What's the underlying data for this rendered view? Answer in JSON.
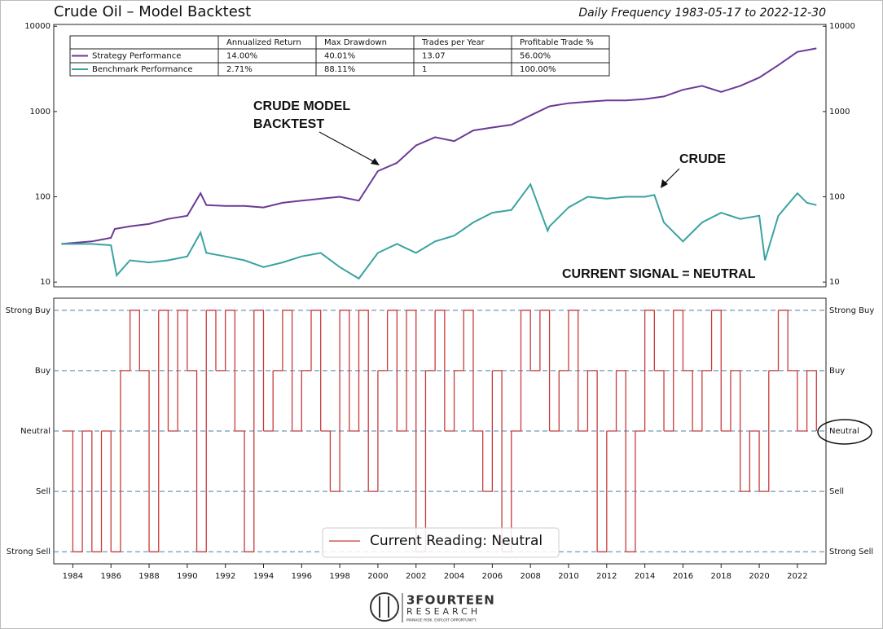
{
  "chart_data": [
    {
      "type": "line",
      "title": "Crude Oil – Model Backtest",
      "subtitle": "Daily Frequency 1983-05-17 to 2022-12-30",
      "log_scale": true,
      "xlim": [
        1983,
        2023.5
      ],
      "ylim": [
        8.8,
        10500
      ],
      "yticks": [
        10,
        100,
        1000,
        10000
      ],
      "series": [
        {
          "name": "Strategy Performance",
          "color": "#6b3a96",
          "x": [
            1983.4,
            1985,
            1986,
            1986.2,
            1987,
            1988,
            1989,
            1990,
            1990.7,
            1991,
            1992,
            1993,
            1994,
            1995,
            1996,
            1997,
            1998,
            1999,
            2000,
            2001,
            2002,
            2003,
            2004,
            2005,
            2006,
            2007,
            2008,
            2009,
            2010,
            2011,
            2012,
            2013,
            2014,
            2015,
            2016,
            2017,
            2018,
            2019,
            2020,
            2021,
            2022,
            2023
          ],
          "values": [
            28,
            30,
            33,
            42,
            45,
            48,
            55,
            60,
            110,
            80,
            78,
            78,
            75,
            85,
            90,
            95,
            100,
            90,
            200,
            250,
            400,
            500,
            450,
            600,
            650,
            700,
            900,
            1150,
            1250,
            1300,
            1350,
            1350,
            1400,
            1500,
            1800,
            2000,
            1700,
            2000,
            2500,
            3500,
            5000,
            5500
          ]
        },
        {
          "name": "Benchmark Performance",
          "color": "#3aa3a0",
          "x": [
            1983.4,
            1985,
            1986,
            1986.3,
            1987,
            1988,
            1989,
            1990,
            1990.7,
            1991,
            1992,
            1993,
            1994,
            1995,
            1996,
            1997,
            1998,
            1999,
            2000,
            2001,
            2002,
            2003,
            2004,
            2005,
            2006,
            2007,
            2008,
            2008.9,
            2009,
            2010,
            2011,
            2012,
            2013,
            2014,
            2014.5,
            2015,
            2016,
            2017,
            2018,
            2019,
            2020,
            2020.3,
            2021,
            2022,
            2022.5,
            2023
          ],
          "values": [
            28,
            28,
            27,
            12,
            18,
            17,
            18,
            20,
            38,
            22,
            20,
            18,
            15,
            17,
            20,
            22,
            15,
            11,
            22,
            28,
            22,
            30,
            35,
            50,
            65,
            70,
            140,
            40,
            45,
            75,
            100,
            95,
            100,
            100,
            105,
            50,
            30,
            50,
            65,
            55,
            60,
            18,
            60,
            110,
            85,
            80
          ]
        }
      ],
      "table": {
        "header": [
          "Annualized Return",
          "Max Drawdown",
          "Trades per Year",
          "Profitable Trade %"
        ],
        "rows": [
          [
            "14.00%",
            "40.01%",
            "13.07",
            "56.00%"
          ],
          [
            "2.71%",
            "88.11%",
            "1",
            "100.00%"
          ]
        ]
      },
      "annotations": [
        "CRUDE MODEL",
        "BACKTEST",
        "CRUDE",
        "CURRENT SIGNAL = NEUTRAL"
      ]
    },
    {
      "type": "step",
      "xlim": [
        1983,
        2023.5
      ],
      "ylim": [
        -2.2,
        2.2
      ],
      "xticks": [
        1984,
        1986,
        1988,
        1990,
        1992,
        1994,
        1996,
        1998,
        2000,
        2002,
        2004,
        2006,
        2008,
        2010,
        2012,
        2014,
        2016,
        2018,
        2020,
        2022
      ],
      "yticks": [
        {
          "value": -2,
          "label": "Strong Sell"
        },
        {
          "value": -1,
          "label": "Sell"
        },
        {
          "value": 0,
          "label": "Neutral"
        },
        {
          "value": 1,
          "label": "Buy"
        },
        {
          "value": 2,
          "label": "Strong Buy"
        }
      ],
      "grid": true,
      "series": [
        {
          "name": "Current Reading: Neutral",
          "color": "#c83c3c",
          "x": [
            1983.5,
            1984,
            1984.5,
            1985,
            1985.5,
            1986,
            1986.5,
            1987,
            1987.5,
            1988,
            1988.5,
            1989,
            1989.5,
            1990,
            1990.5,
            1991,
            1991.5,
            1992,
            1992.5,
            1993,
            1993.5,
            1994,
            1994.5,
            1995,
            1995.5,
            1996,
            1996.5,
            1997,
            1997.5,
            1998,
            1998.5,
            1999,
            1999.5,
            2000,
            2000.5,
            2001,
            2001.5,
            2002,
            2002.5,
            2003,
            2003.5,
            2004,
            2004.5,
            2005,
            2005.5,
            2006,
            2006.5,
            2007,
            2007.5,
            2008,
            2008.5,
            2009,
            2009.5,
            2010,
            2010.5,
            2011,
            2011.5,
            2012,
            2012.5,
            2013,
            2013.5,
            2014,
            2014.5,
            2015,
            2015.5,
            2016,
            2016.5,
            2017,
            2017.5,
            2018,
            2018.5,
            2019,
            2019.5,
            2020,
            2020.5,
            2021,
            2021.5,
            2022,
            2022.5,
            2023
          ],
          "values": [
            0,
            -2,
            0,
            -2,
            0,
            -2,
            1,
            2,
            1,
            -2,
            2,
            0,
            2,
            1,
            -2,
            2,
            1,
            2,
            0,
            -2,
            2,
            0,
            1,
            2,
            0,
            1,
            2,
            0,
            -1,
            2,
            0,
            2,
            -1,
            1,
            2,
            0,
            2,
            -2,
            1,
            2,
            0,
            1,
            2,
            0,
            -1,
            1,
            -2,
            0,
            2,
            1,
            2,
            0,
            1,
            2,
            0,
            1,
            -2,
            0,
            1,
            -2,
            0,
            2,
            1,
            0,
            2,
            1,
            0,
            1,
            2,
            0,
            1,
            -1,
            0,
            -1,
            1,
            2,
            1,
            0,
            1,
            0
          ]
        }
      ],
      "legend": "lower center"
    }
  ],
  "logo": {
    "name": "3FOURTEEN",
    "sub": "RESEARCH",
    "tagline": "MANAGE RISK. EXPLOIT OPPORTUNITY."
  }
}
